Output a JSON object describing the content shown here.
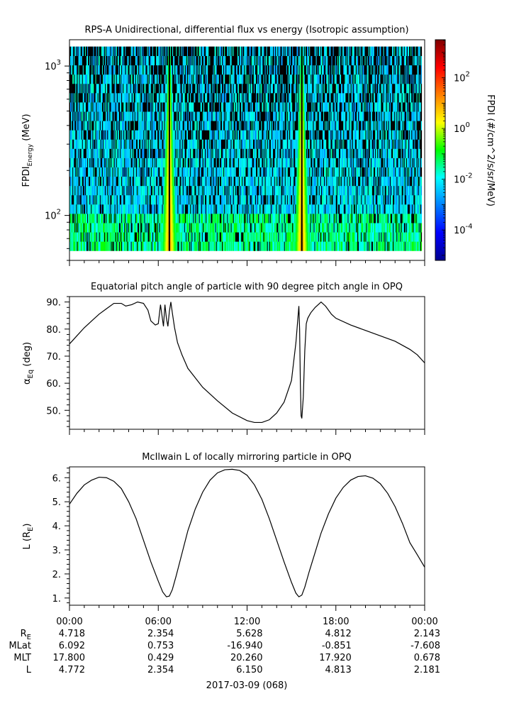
{
  "chart_data": [
    {
      "type": "heatmap",
      "title": "RPS-A Unidirectional, differential flux vs energy (Isotropic assumption)",
      "ylabel": {
        "base": "FPDI",
        "sub": "Energy",
        "unit": " (MeV)"
      },
      "yscale": "log",
      "ylim": [
        50,
        1500
      ],
      "yticks": [
        {
          "value": 100,
          "base": "10",
          "exp": "2"
        },
        {
          "value": 1000,
          "base": "10",
          "exp": "3"
        }
      ],
      "energy_range": [
        58,
        1350
      ],
      "colorbar": {
        "label": "FPDI (#/cm^2/s/sr/MeV)",
        "scale": "log",
        "range_log10": [
          -5.2,
          3.5
        ],
        "ticks": [
          {
            "value": -4,
            "base": "10",
            "exp": "-4"
          },
          {
            "value": -2,
            "base": "10",
            "exp": "-2"
          },
          {
            "value": 0,
            "base": "10",
            "exp": "0"
          },
          {
            "value": 2,
            "base": "10",
            "exp": "2"
          }
        ]
      },
      "xlim_hours": [
        0,
        24
      ],
      "data_end_hour": 23.8,
      "flux_peaks_hours": [
        6.75,
        15.7
      ],
      "data_gap_hours": [
        6.75,
        15.7
      ],
      "background_log10_flux": -2.5
    },
    {
      "type": "line",
      "title": "Equatorial pitch angle of particle with 90 degree pitch angle in OPQ",
      "ylabel": {
        "base": "α",
        "sub": "Eq",
        "unit": " (deg)"
      },
      "ylim": [
        43,
        92
      ],
      "yticks": [
        50,
        60,
        70,
        80,
        90
      ],
      "xlim_hours": [
        0,
        24
      ],
      "x": [
        0,
        0.5,
        1,
        1.5,
        2,
        2.5,
        3,
        3.5,
        3.8,
        4.2,
        4.6,
        5.0,
        5.3,
        5.5,
        5.8,
        6.0,
        6.15,
        6.25,
        6.35,
        6.45,
        6.55,
        6.65,
        6.75,
        6.85,
        6.95,
        7.1,
        7.3,
        7.6,
        8,
        9,
        10,
        11,
        12,
        12.5,
        13,
        13.5,
        14,
        14.5,
        15,
        15.3,
        15.5,
        15.55,
        15.6,
        15.65,
        15.7,
        15.8,
        15.9,
        16.0,
        16.1,
        16.3,
        16.6,
        17.0,
        17.3,
        17.7,
        18,
        19,
        20,
        21,
        22,
        23,
        23.5,
        24
      ],
      "y": [
        74.5,
        77.5,
        80.5,
        83,
        85.5,
        87.5,
        89.5,
        89.5,
        88.5,
        89,
        90,
        89.5,
        87,
        83,
        81.5,
        82,
        89,
        85,
        81,
        89,
        84,
        81,
        86.5,
        90,
        86,
        80.5,
        75,
        70.5,
        65.5,
        58.5,
        53.5,
        49,
        46.2,
        45.5,
        45.5,
        46.5,
        49,
        53,
        61,
        75,
        88.5,
        80,
        60,
        48,
        47,
        55,
        72,
        82,
        84,
        86,
        88,
        90,
        88.5,
        85.5,
        84,
        81.5,
        79.5,
        77.5,
        75.5,
        72.5,
        70.5,
        67.5
      ]
    },
    {
      "type": "line",
      "title": "McIlwain L of locally mirroring particle in OPQ",
      "ylabel": {
        "base": "L (R",
        "sub": "E",
        "unit": ")"
      },
      "ylim": [
        0.7,
        6.45
      ],
      "yticks": [
        1,
        2,
        3,
        4,
        5,
        6
      ],
      "xlim_hours": [
        0,
        24
      ],
      "x": [
        0,
        0.5,
        1,
        1.5,
        2,
        2.5,
        3,
        3.5,
        4,
        4.5,
        5,
        5.5,
        6,
        6.3,
        6.55,
        6.75,
        6.95,
        7.2,
        7.6,
        8,
        8.5,
        9,
        9.5,
        10,
        10.5,
        11,
        11.5,
        12,
        12.5,
        13,
        13.5,
        14,
        14.5,
        15,
        15.3,
        15.5,
        15.7,
        15.9,
        16.2,
        16.6,
        17,
        17.5,
        18,
        18.5,
        19,
        19.5,
        20,
        20.5,
        21,
        21.5,
        22,
        22.5,
        23,
        23.5,
        24
      ],
      "y": [
        4.9,
        5.35,
        5.7,
        5.9,
        6.02,
        6.0,
        5.85,
        5.55,
        5.0,
        4.3,
        3.4,
        2.5,
        1.7,
        1.25,
        1.05,
        1.08,
        1.35,
        1.9,
        2.85,
        3.8,
        4.7,
        5.4,
        5.9,
        6.2,
        6.33,
        6.35,
        6.3,
        6.1,
        5.7,
        5.1,
        4.3,
        3.4,
        2.5,
        1.65,
        1.2,
        1.05,
        1.12,
        1.45,
        2.1,
        2.9,
        3.7,
        4.5,
        5.15,
        5.6,
        5.9,
        6.05,
        6.08,
        5.98,
        5.75,
        5.35,
        4.8,
        4.1,
        3.3,
        2.8,
        2.28
      ]
    }
  ],
  "time_axis": {
    "tick_labels": [
      "00:00",
      "06:00",
      "12:00",
      "18:00",
      "00:00"
    ],
    "date_label": "2017-03-09 (068)"
  },
  "ephemeris": {
    "rows": [
      {
        "label": "R",
        "label_sub": "E",
        "values": [
          "4.718",
          "2.354",
          "5.628",
          "4.812",
          "2.143"
        ]
      },
      {
        "label": "MLat",
        "label_sub": "",
        "values": [
          "6.092",
          "0.753",
          "-16.940",
          "-0.851",
          "-7.608"
        ]
      },
      {
        "label": "MLT",
        "label_sub": "",
        "values": [
          "17.800",
          "0.429",
          "20.260",
          "17.920",
          "0.678"
        ]
      },
      {
        "label": "L",
        "label_sub": "",
        "values": [
          "4.772",
          "2.354",
          "6.150",
          "4.813",
          "2.181"
        ]
      }
    ]
  }
}
